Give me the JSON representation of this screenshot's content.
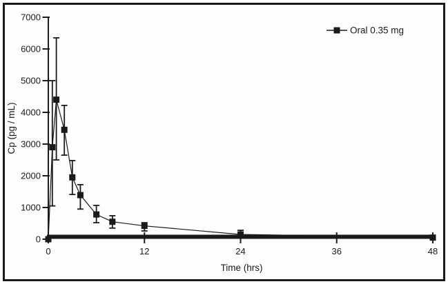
{
  "figure": {
    "border_color": "#1a1a1a",
    "background_color": "#fdfdfd",
    "ink_color": "#1a1a1a"
  },
  "chart_data": {
    "type": "line",
    "title": "",
    "xlabel": "Time (hrs)",
    "ylabel": "Cp (pg / mL)",
    "xlim": [
      0,
      48
    ],
    "ylim": [
      0,
      7000
    ],
    "x_ticks": [
      0,
      12,
      24,
      36,
      48
    ],
    "y_ticks": [
      0,
      1000,
      2000,
      3000,
      4000,
      5000,
      6000,
      7000
    ],
    "grid": false,
    "legend": {
      "position": "top-right",
      "entries": [
        {
          "label": "Oral 0.35 mg",
          "marker": "filled-square",
          "color": "#1a1a1a"
        }
      ]
    },
    "series": [
      {
        "name": "Oral 0.35 mg",
        "marker": "filled-square",
        "color": "#1a1a1a",
        "x": [
          0,
          0.5,
          1,
          2,
          3,
          4,
          6,
          8,
          12,
          24,
          48
        ],
        "y": [
          0,
          2900,
          4400,
          3450,
          1950,
          1390,
          780,
          550,
          420,
          150,
          50
        ],
        "y_lower": [
          0,
          1050,
          2500,
          2650,
          1410,
          950,
          520,
          350,
          260,
          60,
          50
        ],
        "y_upper": [
          0,
          5000,
          6350,
          4220,
          2480,
          1720,
          1065,
          740,
          520,
          280,
          50
        ]
      }
    ]
  }
}
